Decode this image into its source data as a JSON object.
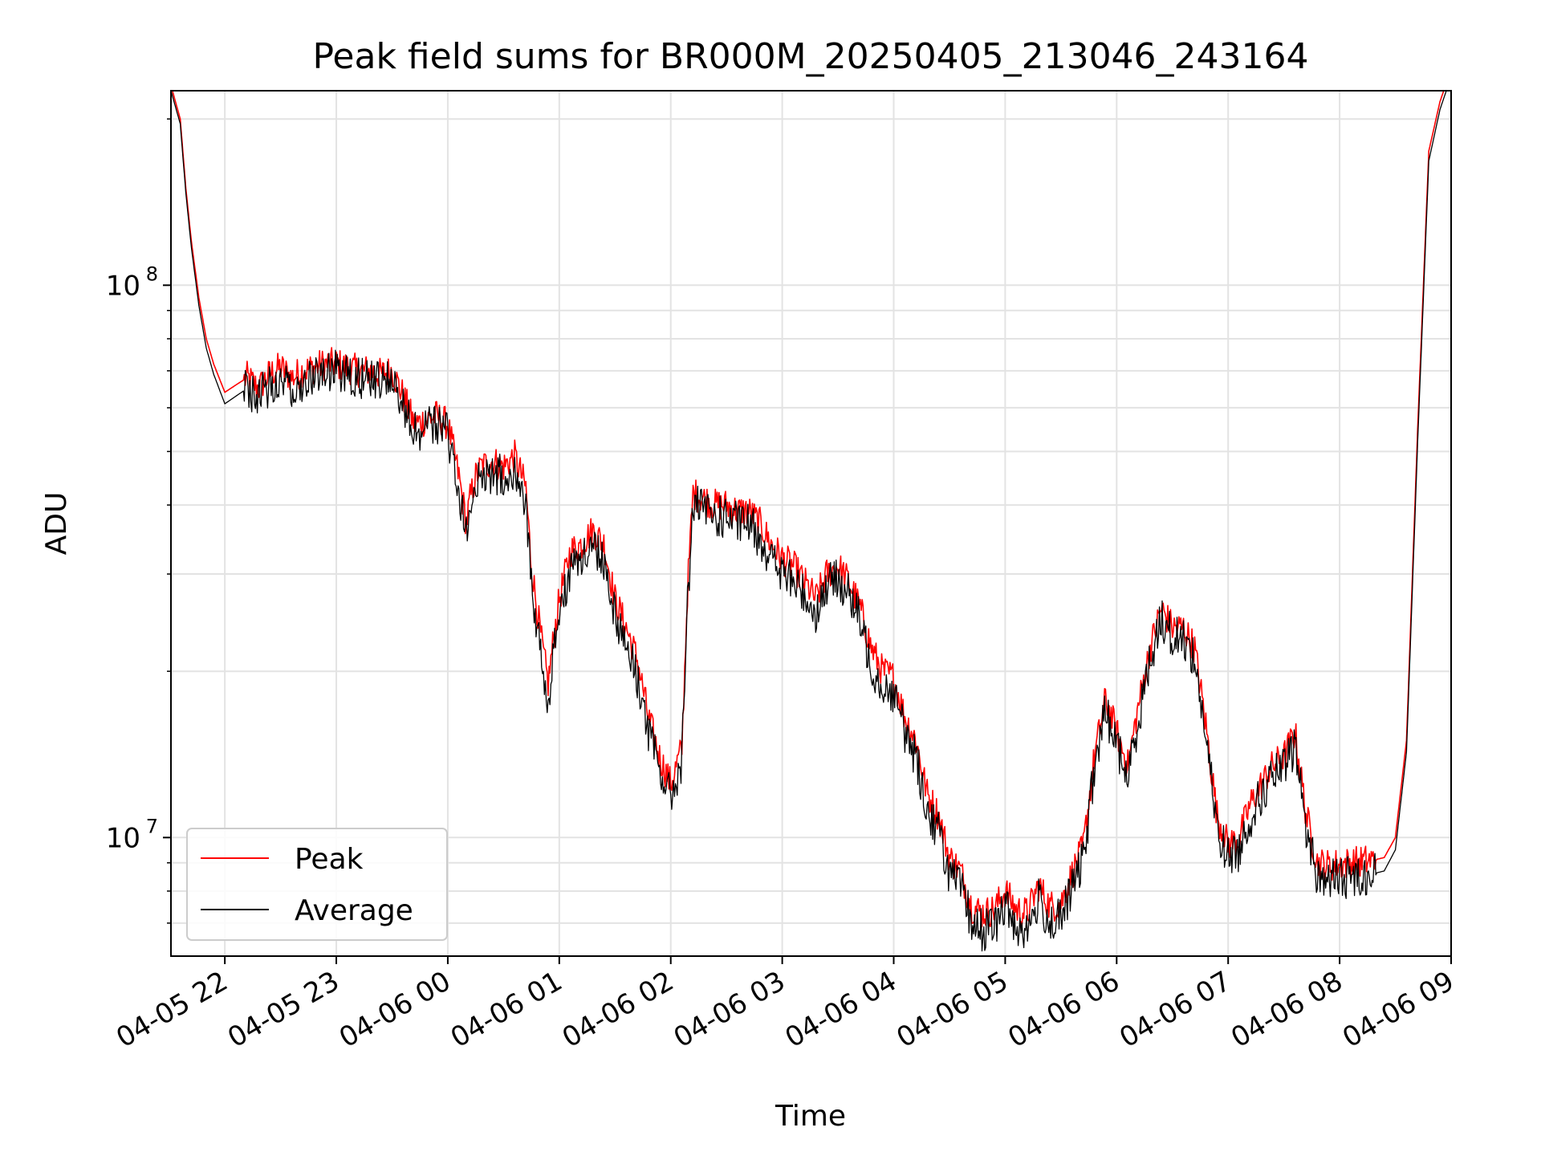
{
  "chart_data": {
    "type": "line",
    "title": "Peak field sums for BR000M_20250405_213046_243164",
    "xlabel": "Time",
    "ylabel": "ADU",
    "yscale": "log",
    "ylim": [
      6100000,
      225000000
    ],
    "xlim": [
      "04-05 21:31",
      "04-06 09:00"
    ],
    "grid": true,
    "legend_position": "lower-left",
    "x_ticks": [
      "04-05 22",
      "04-05 23",
      "04-06 00",
      "04-06 01",
      "04-06 02",
      "04-06 03",
      "04-06 04",
      "04-06 05",
      "04-06 06",
      "04-06 07",
      "04-06 08",
      "04-06 09"
    ],
    "y_ticks": [
      {
        "value": 10000000,
        "base": "10",
        "exp": "7"
      },
      {
        "value": 100000000,
        "base": "10",
        "exp": "8"
      }
    ],
    "x": [
      "04-05 21:31",
      "04-05 21:36",
      "04-05 21:39",
      "04-05 21:42",
      "04-05 21:46",
      "04-05 21:50",
      "04-05 21:54",
      "04-05 22:00",
      "04-05 22:06",
      "04-05 22:12",
      "04-05 22:18",
      "04-05 22:24",
      "04-05 22:30",
      "04-05 22:36",
      "04-05 22:42",
      "04-05 22:48",
      "04-05 22:54",
      "04-05 23:00",
      "04-05 23:06",
      "04-05 23:12",
      "04-05 23:18",
      "04-05 23:24",
      "04-05 23:30",
      "04-05 23:36",
      "04-05 23:42",
      "04-05 23:48",
      "04-05 23:54",
      "04-06 00:00",
      "04-06 00:06",
      "04-06 00:10",
      "04-06 00:12",
      "04-06 00:15",
      "04-06 00:18",
      "04-06 00:24",
      "04-06 00:30",
      "04-06 00:36",
      "04-06 00:42",
      "04-06 00:45",
      "04-06 00:48",
      "04-06 00:51",
      "04-06 00:54",
      "04-06 00:57",
      "04-06 01:00",
      "04-06 01:06",
      "04-06 01:12",
      "04-06 01:18",
      "04-06 01:24",
      "04-06 01:30",
      "04-06 01:36",
      "04-06 01:42",
      "04-06 01:48",
      "04-06 01:54",
      "04-06 02:00",
      "04-06 02:06",
      "04-06 02:09",
      "04-06 02:12",
      "04-06 02:18",
      "04-06 02:24",
      "04-06 02:30",
      "04-06 02:36",
      "04-06 02:42",
      "04-06 02:48",
      "04-06 02:54",
      "04-06 03:00",
      "04-06 03:06",
      "04-06 03:12",
      "04-06 03:18",
      "04-06 03:24",
      "04-06 03:30",
      "04-06 03:36",
      "04-06 03:42",
      "04-06 03:48",
      "04-06 03:54",
      "04-06 04:00",
      "04-06 04:06",
      "04-06 04:12",
      "04-06 04:18",
      "04-06 04:24",
      "04-06 04:30",
      "04-06 04:36",
      "04-06 04:42",
      "04-06 04:48",
      "04-06 04:54",
      "04-06 05:00",
      "04-06 05:06",
      "04-06 05:12",
      "04-06 05:18",
      "04-06 05:24",
      "04-06 05:30",
      "04-06 05:36",
      "04-06 05:42",
      "04-06 05:48",
      "04-06 05:54",
      "04-06 06:00",
      "04-06 06:06",
      "04-06 06:12",
      "04-06 06:18",
      "04-06 06:24",
      "04-06 06:30",
      "04-06 06:36",
      "04-06 06:42",
      "04-06 06:48",
      "04-06 06:54",
      "04-06 07:00",
      "04-06 07:06",
      "04-06 07:12",
      "04-06 07:18",
      "04-06 07:24",
      "04-06 07:30",
      "04-06 07:36",
      "04-06 07:42",
      "04-06 07:48",
      "04-06 07:54",
      "04-06 08:00",
      "04-06 08:06",
      "04-06 08:12",
      "04-06 08:18",
      "04-06 08:24",
      "04-06 08:30",
      "04-06 08:36",
      "04-06 08:42",
      "04-06 08:48",
      "04-06 08:54",
      "04-06 08:58"
    ],
    "series": [
      {
        "name": "Peak",
        "color": "#ff0000",
        "values": [
          230000000,
          200000000,
          150000000,
          120000000,
          95000000,
          80000000,
          72000000,
          64000000,
          66000000,
          68000000,
          65000000,
          69000000,
          71000000,
          68000000,
          70000000,
          71000000,
          72000000,
          72000000,
          71000000,
          70000000,
          70000000,
          69000000,
          70000000,
          63000000,
          56000000,
          57000000,
          58000000,
          56000000,
          45000000,
          37000000,
          41000000,
          45000000,
          47000000,
          48000000,
          47000000,
          49000000,
          43000000,
          31000000,
          26000000,
          22000000,
          19000000,
          23000000,
          27000000,
          33000000,
          34000000,
          36000000,
          34000000,
          27000000,
          24000000,
          21000000,
          16500000,
          14000000,
          12500000,
          14500000,
          28000000,
          42000000,
          41000000,
          40000000,
          40000000,
          39000000,
          39000000,
          37000000,
          34000000,
          32000000,
          31000000,
          29000000,
          27000000,
          30000000,
          31000000,
          29000000,
          26000000,
          22000000,
          20000000,
          19500000,
          16500000,
          15000000,
          12000000,
          11000000,
          9200000,
          8700000,
          7500000,
          7300000,
          7400000,
          8000000,
          7400000,
          7300000,
          8200000,
          7500000,
          7600000,
          8600000,
          9600000,
          14000000,
          17800000,
          15500000,
          13500000,
          17500000,
          22000000,
          26000000,
          24000000,
          24000000,
          22000000,
          16000000,
          11000000,
          9700000,
          10000000,
          11500000,
          12500000,
          13500000,
          14000000,
          15500000,
          11000000,
          9000000,
          8900000,
          8950000,
          9000000,
          9050000,
          9100000,
          9200000,
          10000000,
          15000000,
          55000000,
          175000000,
          215000000,
          235000000
        ]
      },
      {
        "name": "Average",
        "color": "#000000",
        "values": [
          225000000,
          196000000,
          147000000,
          117000000,
          92000000,
          77000000,
          69000000,
          61000000,
          63000000,
          65000000,
          62000000,
          66000000,
          68000000,
          65000000,
          67000000,
          69000000,
          70000000,
          70000000,
          69000000,
          68000000,
          68000000,
          67000000,
          68000000,
          61000000,
          54000000,
          55000000,
          56000000,
          54000000,
          43000000,
          35000000,
          39000000,
          43000000,
          45000000,
          46000000,
          45000000,
          47000000,
          41000000,
          29000000,
          24000000,
          20000000,
          17500000,
          21500000,
          25500000,
          31000000,
          32000000,
          34000000,
          32000000,
          25500000,
          22500000,
          19500000,
          15500000,
          13200000,
          11800000,
          13800000,
          26500000,
          40000000,
          39000000,
          38000000,
          38000000,
          37000000,
          37000000,
          35000000,
          32000000,
          30000000,
          29000000,
          27500000,
          25500000,
          28500000,
          29500000,
          27500000,
          24500000,
          20500000,
          18800000,
          18300000,
          15500000,
          14000000,
          11200000,
          10300000,
          8600000,
          8100000,
          7000000,
          6800000,
          6900000,
          7500000,
          6900000,
          6800000,
          7700000,
          7000000,
          7100000,
          8100000,
          9100000,
          13300000,
          17000000,
          14700000,
          12800000,
          16600000,
          21000000,
          25000000,
          23000000,
          23000000,
          21000000,
          15200000,
          10400000,
          9200000,
          9500000,
          10900000,
          11900000,
          12900000,
          13300000,
          14700000,
          10400000,
          8500000,
          8400000,
          8450000,
          8500000,
          8550000,
          8600000,
          8700000,
          9500000,
          14300000,
          52000000,
          168000000,
          208000000,
          228000000
        ]
      }
    ]
  }
}
